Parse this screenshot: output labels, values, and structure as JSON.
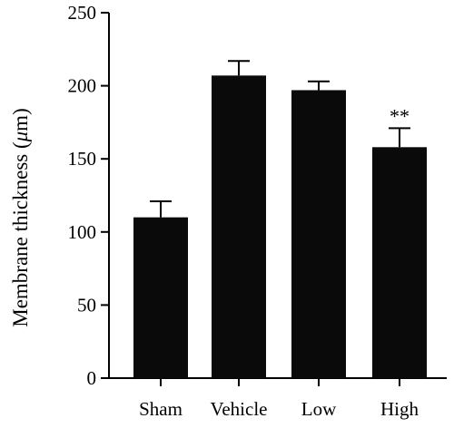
{
  "chart_data": {
    "type": "bar",
    "categories": [
      "Sham",
      "Vehicle",
      "Low",
      "High"
    ],
    "values": [
      110,
      207,
      197,
      158
    ],
    "errors": [
      11,
      10,
      6,
      13
    ],
    "annotations": [
      "",
      "",
      "",
      "**"
    ],
    "ylabel_prefix": "Membrane thickness (",
    "ylabel_unit": "μ",
    "ylabel_suffix": "m)",
    "xlabel": "",
    "ylim": [
      0,
      250
    ],
    "yticks": [
      0,
      50,
      100,
      150,
      200,
      250
    ],
    "bar_color": "#0a0a0a",
    "grid": false,
    "legend": "none"
  }
}
